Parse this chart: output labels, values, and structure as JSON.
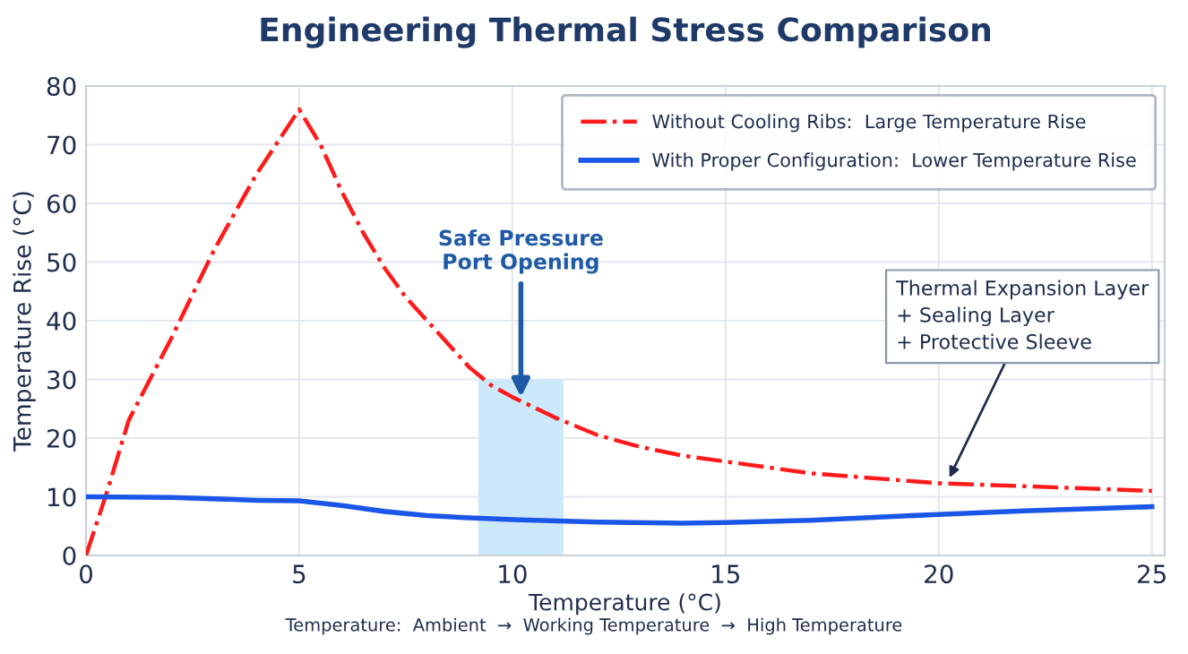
{
  "chart_data": {
    "type": "line",
    "title": "Engineering Thermal Stress Comparison",
    "xlabel": "Temperature (°C)",
    "ylabel": "Temperature Rise (°C)",
    "series": [
      {
        "name": "Without Cooling Ribs:  Large Temperature Rise",
        "color": "#ff1a1a",
        "line_style": "dashdot",
        "x": [
          0,
          0.5,
          1,
          2,
          3,
          4,
          5,
          5.5,
          6,
          6.5,
          7,
          7.5,
          8,
          8.5,
          9,
          9.5,
          10,
          11,
          12,
          13,
          14,
          15,
          17,
          20,
          22,
          25
        ],
        "values": [
          0,
          11,
          23,
          37,
          52,
          65,
          76,
          70,
          62,
          55,
          49,
          44,
          40,
          36,
          32,
          29,
          27,
          23.5,
          20.5,
          18.5,
          17,
          16,
          14,
          12.3,
          11.8,
          11
        ]
      },
      {
        "name": "With Proper Configuration:  Lower Temperature Rise",
        "color": "#1a56e8",
        "line_style": "solid",
        "x": [
          0,
          2,
          4,
          5,
          6,
          7,
          8,
          9,
          10,
          12,
          14,
          15,
          17,
          20,
          22,
          25
        ],
        "values": [
          10,
          9.9,
          9.4,
          9.3,
          8.5,
          7.5,
          6.8,
          6.4,
          6.1,
          5.7,
          5.5,
          5.6,
          6.0,
          7.0,
          7.6,
          8.3
        ]
      }
    ],
    "xlim": [
      0,
      25.3
    ],
    "ylim": [
      0,
      80
    ],
    "xticks": [
      0,
      5,
      10,
      15,
      20,
      25
    ],
    "yticks": [
      0,
      10,
      20,
      30,
      40,
      50,
      60,
      70,
      80
    ],
    "grid": true,
    "legend": "top right",
    "marker": "none",
    "bands": [
      {
        "axis": "x",
        "from": 9.2,
        "to": 11.2,
        "color": "#cce9fb"
      }
    ],
    "annotations": [
      {
        "text": "Safe Pressure\nPort Opening",
        "x": 10.2,
        "y": 27
      },
      {
        "text": "Thermal Expansion Layer\n+ Sealing Layer\n+ Protective Sleeve",
        "x": 20.2,
        "y": 12.5
      },
      "Temperature:  Ambient  →  Working Temperature  →  High Temperature"
    ]
  }
}
